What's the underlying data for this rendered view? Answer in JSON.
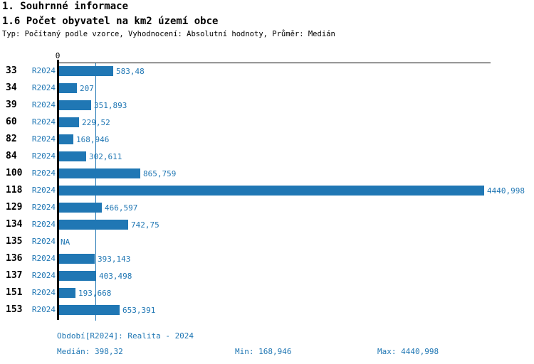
{
  "header": {
    "section_title": "1. Souhrnné informace",
    "chart_title": "1.6 Počet obyvatel na km2 území obce",
    "meta": "Typ: Počítaný podle vzorce, Vyhodnocení: Absolutní hodnoty, Průměr: Medián"
  },
  "colors": {
    "accent": "#2077b4",
    "axis": "#000000",
    "background": "#ffffff"
  },
  "chart_data": {
    "type": "bar",
    "orientation": "horizontal",
    "title": "1.6 Počet obyvatel na km2 území obce",
    "categories": [
      "33",
      "34",
      "39",
      "60",
      "82",
      "84",
      "100",
      "118",
      "129",
      "134",
      "135",
      "136",
      "137",
      "151",
      "153"
    ],
    "series": [
      {
        "name": "R2024",
        "values": [
          583.48,
          207,
          351.893,
          229.52,
          168.946,
          302.611,
          865.759,
          4440.998,
          466.597,
          742.75,
          null,
          393.143,
          403.498,
          193.668,
          653.391
        ],
        "value_labels": [
          "583,48",
          "207",
          "351,893",
          "229,52",
          "168,946",
          "302,611",
          "865,759",
          "4440,998",
          "466,597",
          "742,75",
          "NA",
          "393,143",
          "403,498",
          "193,668",
          "653,391"
        ]
      }
    ],
    "x_axis": {
      "origin_label": "0",
      "min": 0,
      "max": 4440.998
    },
    "median_line_value": 398.32,
    "grid": false,
    "legend_position": "none",
    "stats": {
      "median": 398.32,
      "min": 168.946,
      "max": 4440.998
    }
  },
  "footer": {
    "period_label": "Období[R2024]: Realita - 2024",
    "median_label": "Medián: 398,32",
    "min_label": "Min: 168,946",
    "max_label": "Max: 4440,998"
  }
}
